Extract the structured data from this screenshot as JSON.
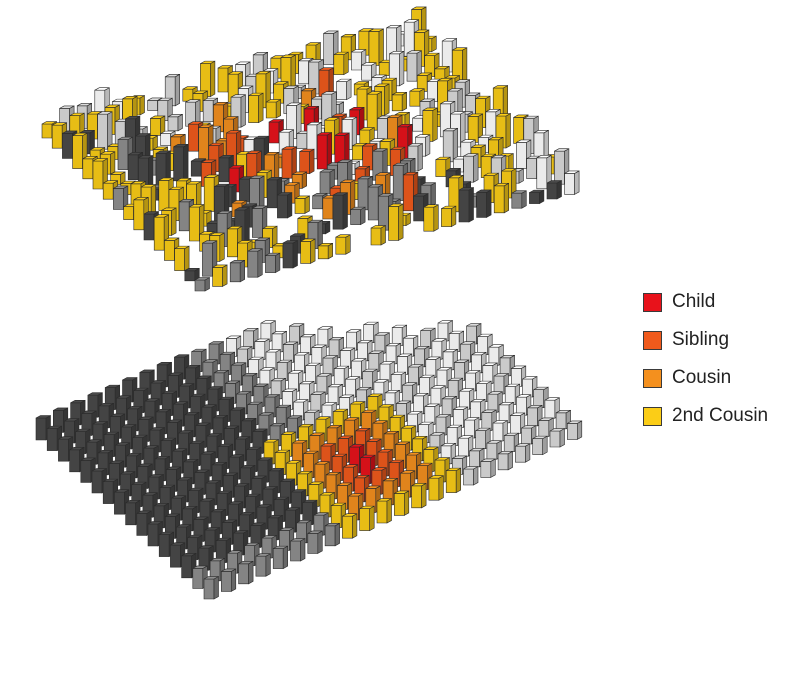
{
  "legend": {
    "items": [
      {
        "label": "Child",
        "color": "#e8121b"
      },
      {
        "label": "Sibling",
        "color": "#f05a1c"
      },
      {
        "label": "Cousin",
        "color": "#f4901e"
      },
      {
        "label": "2nd Cousin",
        "color": "#fbcd17"
      }
    ]
  },
  "palette": {
    "white": "#ffffff",
    "light_gray": "#dcdcdc",
    "mid_gray": "#8f8f8f",
    "dark_gray": "#4a4a4a",
    "outline": "#2b2b2b"
  },
  "panels": [
    {
      "name": "scattered-grid",
      "rows": 16,
      "cols": 22
    },
    {
      "name": "ordered-grid",
      "rows": 16,
      "cols": 22
    }
  ]
}
